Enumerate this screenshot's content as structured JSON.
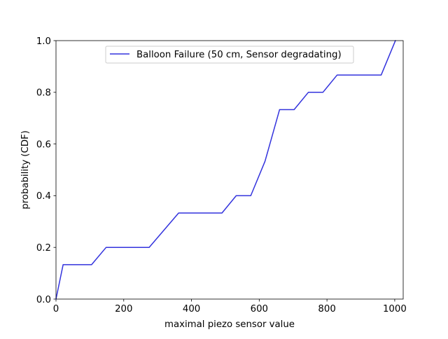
{
  "chart_data": {
    "type": "line",
    "title": "",
    "xlabel": "maximal piezo sensor value",
    "ylabel": "probability (CDF)",
    "xlim": [
      0,
      1025
    ],
    "ylim": [
      0,
      1.0
    ],
    "xticks": [
      0,
      200,
      400,
      600,
      800,
      1000
    ],
    "xtick_labels": [
      "0",
      "200",
      "400",
      "600",
      "800",
      "1000"
    ],
    "yticks": [
      0.0,
      0.2,
      0.4,
      0.6,
      0.8,
      1.0
    ],
    "ytick_labels": [
      "0.0",
      "0.2",
      "0.4",
      "0.6",
      "0.8",
      "1.0"
    ],
    "grid": false,
    "legend_position": "upper-center",
    "series": [
      {
        "name": "Balloon Failure (50 cm, Sensor degradating)",
        "color": "#3333dd",
        "x": [
          0,
          21,
          105,
          148,
          275,
          362,
          490,
          532,
          575,
          617,
          660,
          703,
          745,
          788,
          830,
          960,
          1002
        ],
        "y": [
          0.0,
          0.133,
          0.133,
          0.2,
          0.2,
          0.333,
          0.333,
          0.4,
          0.4,
          0.533,
          0.733,
          0.733,
          0.8,
          0.8,
          0.867,
          0.867,
          1.0
        ]
      }
    ]
  }
}
